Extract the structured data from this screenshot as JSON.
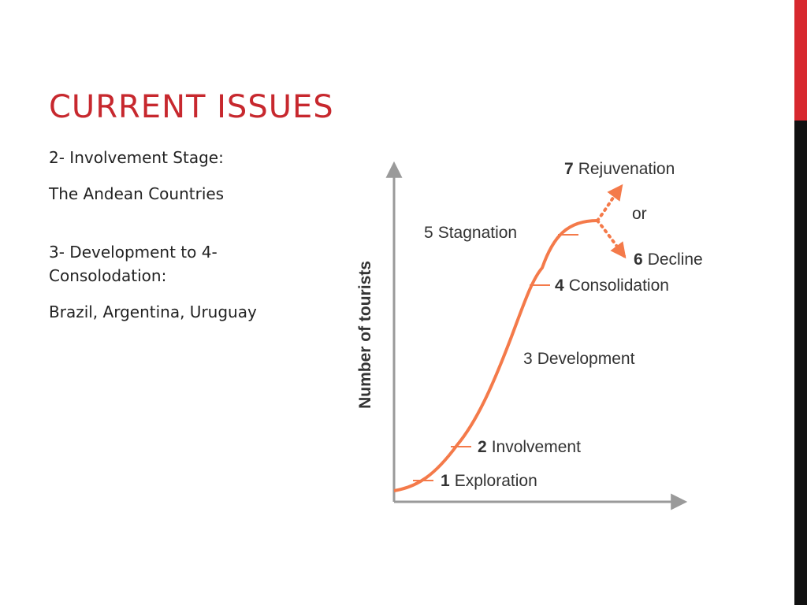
{
  "slide": {
    "title": "CURRENT ISSUES",
    "paragraphs": [
      "2- Involvement Stage:",
      "The Andean Countries",
      "3- Development to 4- Consolodation:",
      "Brazil, Argentina, Uruguay"
    ]
  },
  "diagram": {
    "y_axis_label": "Number of tourists",
    "stages": [
      {
        "number": "1",
        "label": "Exploration"
      },
      {
        "number": "2",
        "label": "Involvement"
      },
      {
        "number": "3",
        "label": "Development"
      },
      {
        "number": "4",
        "label": "Consolidation"
      },
      {
        "number": "5",
        "label": "Stagnation"
      },
      {
        "number": "6",
        "label": "Decline"
      },
      {
        "number": "7",
        "label": "Rejuvenation"
      }
    ],
    "or_label": "or",
    "colors": {
      "curve": "#f47a4a",
      "axis": "#9a9a9a",
      "title": "#c7282e",
      "accent_bar": "#d7282f",
      "dark_bar": "#111111"
    }
  }
}
